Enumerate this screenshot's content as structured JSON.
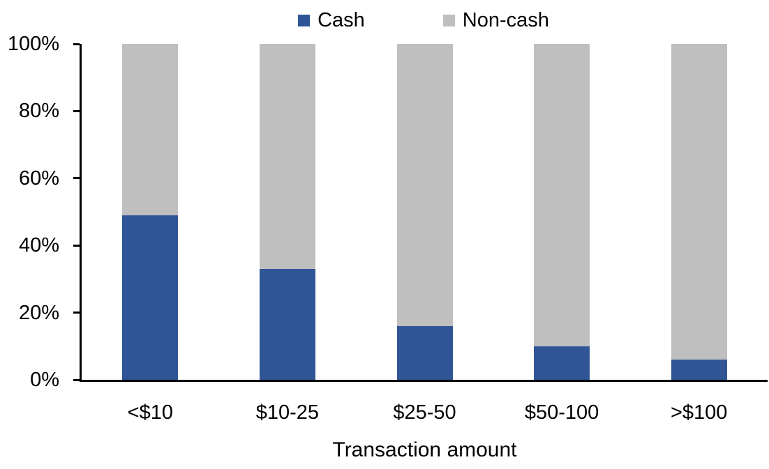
{
  "chart_data": {
    "type": "bar",
    "subtype": "stacked-100-percent",
    "title": "",
    "xlabel": "Transaction amount",
    "ylabel": "",
    "categories": [
      "<$10",
      "$10-25",
      "$25-50",
      "$50-100",
      ">$100"
    ],
    "series": [
      {
        "name": "Cash",
        "color": "#2F5597",
        "values": [
          49,
          33,
          16,
          10,
          6
        ]
      },
      {
        "name": "Non-cash",
        "color": "#BFBFBF",
        "values": [
          51,
          67,
          84,
          90,
          94
        ]
      }
    ],
    "ylim": [
      0,
      100
    ],
    "yticks": [
      "0%",
      "20%",
      "40%",
      "60%",
      "80%",
      "100%"
    ],
    "grid": false,
    "legend_position": "top-center",
    "axis_color": "#000000",
    "background": "#FFFFFF"
  }
}
